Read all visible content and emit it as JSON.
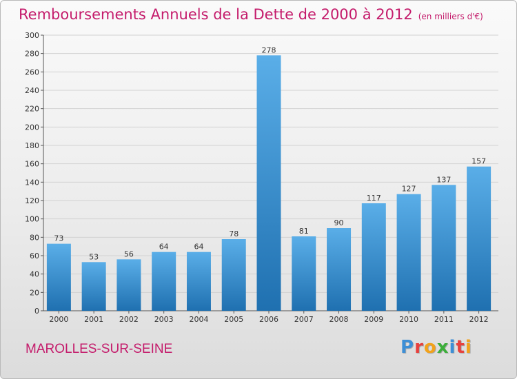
{
  "title": "Remboursements Annuels de la Dette de 2000 à 2012",
  "unit_note": "(en milliers d'€)",
  "commune": "MAROLLES-SUR-SEINE",
  "logo": {
    "letters": [
      "P",
      "r",
      "o",
      "x",
      "i",
      "t",
      "i"
    ],
    "colors": [
      "#3d8fd6",
      "#e8403c",
      "#f2a21b",
      "#3cae3a",
      "#3d8fd6",
      "#e8403c",
      "#f2a21b"
    ]
  },
  "colors": {
    "accent": "#c41b6b",
    "bar_top": "#5aaee8",
    "bar_bottom": "#1f70b0"
  },
  "chart_data": {
    "type": "bar",
    "title": "Remboursements Annuels de la Dette de 2000 à 2012",
    "categories": [
      "2000",
      "2001",
      "2002",
      "2003",
      "2004",
      "2005",
      "2006",
      "2007",
      "2008",
      "2009",
      "2010",
      "2011",
      "2012"
    ],
    "values": [
      73,
      53,
      56,
      64,
      64,
      78,
      278,
      81,
      90,
      117,
      127,
      137,
      157
    ],
    "ylim": [
      0,
      300
    ],
    "yticks": [
      0,
      20,
      40,
      60,
      80,
      100,
      120,
      140,
      160,
      180,
      200,
      220,
      240,
      260,
      280,
      300
    ],
    "grid": true,
    "xlabel": "",
    "ylabel": ""
  }
}
